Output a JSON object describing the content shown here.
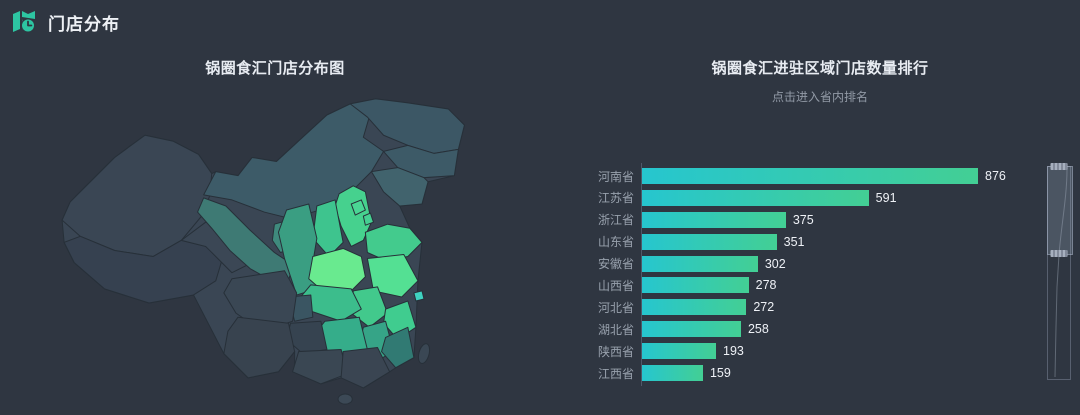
{
  "page": {
    "background": "#2f3641"
  },
  "header": {
    "title": "门店分布",
    "logo_icon": "map-clock-icon",
    "accent_color": "#2dc5a2"
  },
  "chart_data": [
    {
      "type": "map",
      "title": "锅圈食汇门店分布图",
      "legend_position": "none",
      "note": "choropleth of China, brighter green = more stores",
      "regions": [
        {
          "id": "xinjiang",
          "color": "#3a4654"
        },
        {
          "id": "tibet",
          "color": "#364150"
        },
        {
          "id": "qinghai",
          "color": "#3b4755"
        },
        {
          "id": "gansu",
          "color": "#3e7a74"
        },
        {
          "id": "ningxia",
          "color": "#3f8a7d"
        },
        {
          "id": "neimenggu",
          "color": "#3d5b68"
        },
        {
          "id": "heilongjiang",
          "color": "#3c5765"
        },
        {
          "id": "jilin",
          "color": "#3d5a67"
        },
        {
          "id": "liaoning",
          "color": "#41636d"
        },
        {
          "id": "hebei",
          "color": "#46d18e"
        },
        {
          "id": "beijing",
          "color": "#4ad694"
        },
        {
          "id": "tianjin",
          "color": "#45d092"
        },
        {
          "id": "shanxi",
          "color": "#3ec48e"
        },
        {
          "id": "shandong",
          "color": "#43cb8d"
        },
        {
          "id": "henan",
          "color": "#69ea8f"
        },
        {
          "id": "shaanxi",
          "color": "#3a9e82"
        },
        {
          "id": "jiangsu",
          "color": "#54e093"
        },
        {
          "id": "shanghai",
          "color": "#3fd2c0"
        },
        {
          "id": "anhui",
          "color": "#42c98c"
        },
        {
          "id": "hubei",
          "color": "#3cbd8c"
        },
        {
          "id": "chongqing",
          "color": "#3a5562"
        },
        {
          "id": "sichuan",
          "color": "#3a4754"
        },
        {
          "id": "zhejiang",
          "color": "#40cc8f"
        },
        {
          "id": "jiangxi",
          "color": "#36a487"
        },
        {
          "id": "hunan",
          "color": "#35ad8a"
        },
        {
          "id": "guizhou",
          "color": "#364350"
        },
        {
          "id": "yunnan",
          "color": "#38434f"
        },
        {
          "id": "guangxi",
          "color": "#3a4753"
        },
        {
          "id": "guangdong",
          "color": "#3a4552"
        },
        {
          "id": "fujian",
          "color": "#317a73"
        },
        {
          "id": "hainan",
          "color": "#3c4956"
        },
        {
          "id": "taiwan",
          "color": "#3a4754"
        }
      ]
    },
    {
      "type": "bar",
      "orientation": "horizontal",
      "title": "锅圈食汇进驻区域门店数量排行",
      "subtitle": "点击进入省内排名",
      "categories": [
        "河南省",
        "江苏省",
        "浙江省",
        "山东省",
        "安徽省",
        "山西省",
        "河北省",
        "湖北省",
        "陕西省",
        "江西省"
      ],
      "values": [
        876,
        591,
        375,
        351,
        302,
        278,
        272,
        258,
        193,
        159
      ],
      "xmax": 876,
      "bar_gradient": [
        "#26c6cf",
        "#43cf94"
      ],
      "label_color": "#98a1ad",
      "value_color": "#eef1f6",
      "datazoom_slider": "right-vertical"
    }
  ]
}
